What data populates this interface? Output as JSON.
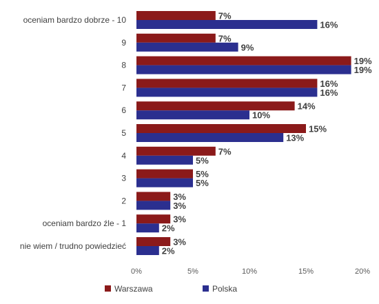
{
  "chart_data": {
    "type": "bar",
    "orientation": "horizontal",
    "categories": [
      "oceniam bardzo dobrze - 10",
      "9",
      "8",
      "7",
      "6",
      "5",
      "4",
      "3",
      "2",
      "oceniam bardzo źle - 1",
      "nie wiem / trudno powiedzieć"
    ],
    "series": [
      {
        "name": "Warszawa",
        "color": "#8B1A1A",
        "values": [
          7,
          7,
          19,
          16,
          14,
          15,
          7,
          5,
          3,
          3,
          3
        ]
      },
      {
        "name": "Polska",
        "color": "#2B2F8F",
        "values": [
          16,
          9,
          19,
          16,
          10,
          13,
          5,
          5,
          3,
          2,
          2
        ]
      }
    ],
    "value_suffix": "%",
    "xlim": [
      0,
      20
    ],
    "xticks": [
      "0%",
      "5%",
      "10%",
      "15%",
      "20%"
    ],
    "grid": false,
    "legend_position": "bottom-left"
  }
}
